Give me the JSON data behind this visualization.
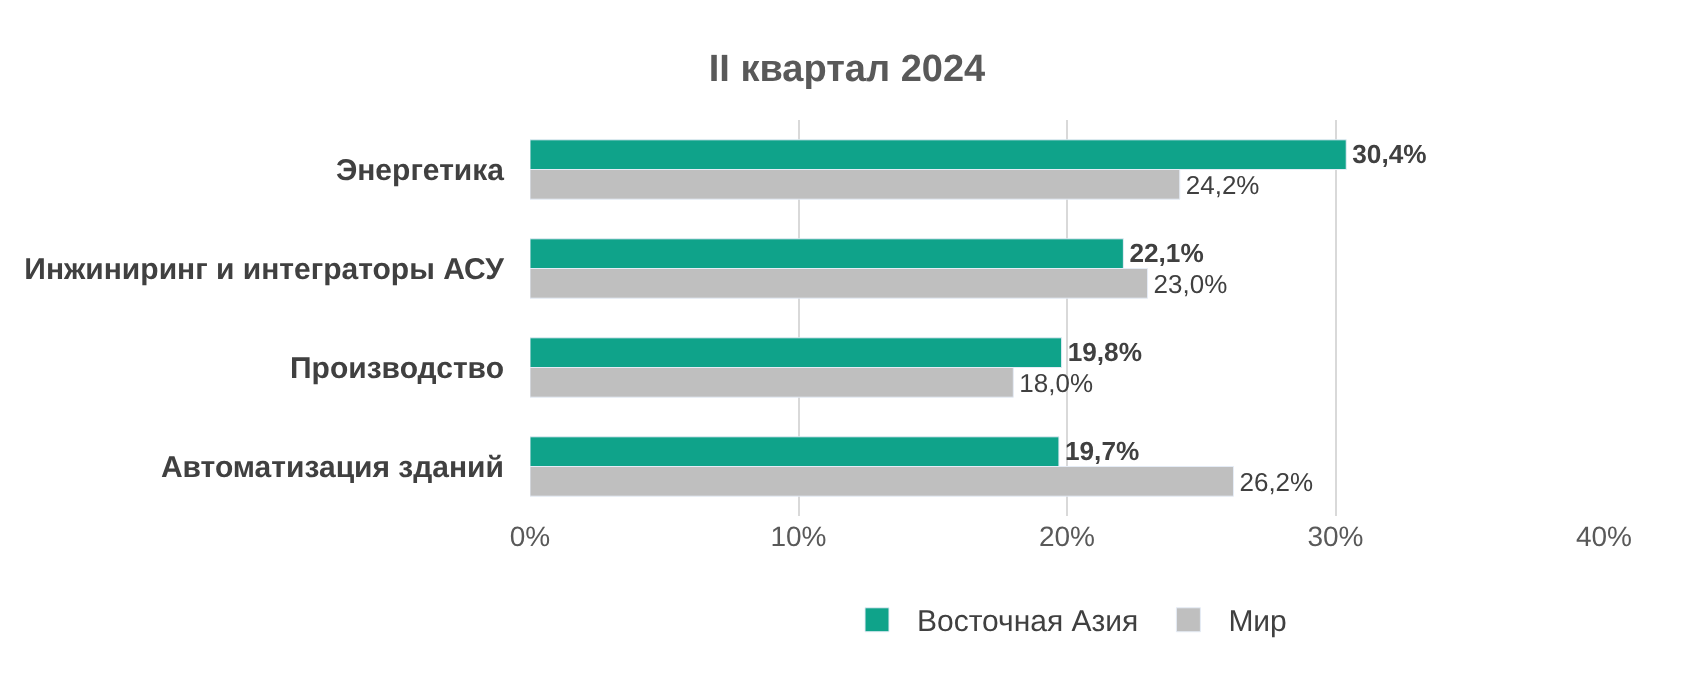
{
  "chart_data": {
    "type": "bar",
    "orientation": "horizontal",
    "title": "II квартал 2024",
    "categories": [
      "Энергетика",
      "Инжиниринг и интеграторы АСУ",
      "Производство",
      "Автоматизация зданий"
    ],
    "series": [
      {
        "name": "Восточная Азия",
        "color": "#0fa38a",
        "values": [
          30.4,
          22.1,
          19.8,
          19.7
        ],
        "value_labels": [
          "30,4%",
          "22,1%",
          "19,8%",
          "19,7%"
        ]
      },
      {
        "name": "Мир",
        "color": "#bfbfbf",
        "values": [
          24.2,
          23.0,
          18.0,
          26.2
        ],
        "value_labels": [
          "24,2%",
          "23,0%",
          "18,0%",
          "26,2%"
        ]
      }
    ],
    "xlim": [
      0,
      40
    ],
    "xticks": [
      {
        "value": 0,
        "label": "0%"
      },
      {
        "value": 10,
        "label": "10%"
      },
      {
        "value": 20,
        "label": "20%"
      },
      {
        "value": 30,
        "label": "30%"
      },
      {
        "value": 40,
        "label": "40%"
      }
    ],
    "grid": "x",
    "legend": "bottom"
  }
}
